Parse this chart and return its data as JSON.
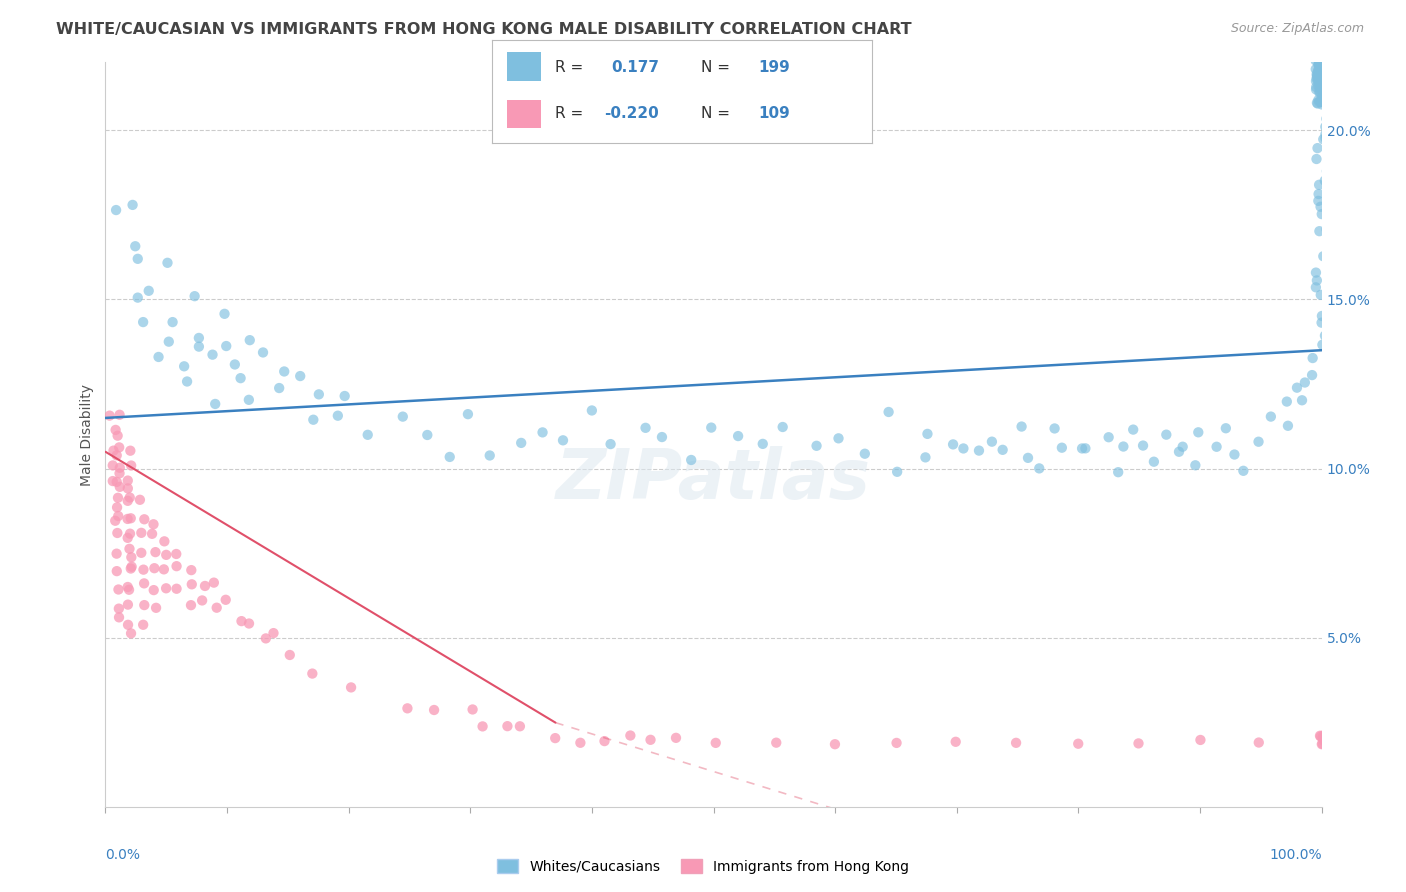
{
  "title": "WHITE/CAUCASIAN VS IMMIGRANTS FROM HONG KONG MALE DISABILITY CORRELATION CHART",
  "source": "Source: ZipAtlas.com",
  "ylabel": "Male Disability",
  "legend_white": {
    "R": 0.177,
    "N": 199,
    "label": "Whites/Caucasians"
  },
  "legend_hk": {
    "R": -0.22,
    "N": 109,
    "label": "Immigrants from Hong Kong"
  },
  "white_color": "#7fbfdf",
  "hk_color": "#f899b5",
  "white_line_color": "#3a80c0",
  "hk_line_color": "#e0506a",
  "title_color": "#444444",
  "axis_label_color": "#3a80c0",
  "xlim": [
    0,
    100
  ],
  "ylim": [
    0,
    22
  ],
  "ytick_vals": [
    5,
    10,
    15,
    20
  ],
  "ytick_labels": [
    "5.0%",
    "10.0%",
    "15.0%",
    "20.0%"
  ],
  "white_scatter_x": [
    1,
    2,
    2,
    3,
    3,
    3,
    4,
    4,
    5,
    5,
    6,
    6,
    7,
    7,
    8,
    8,
    9,
    9,
    10,
    10,
    11,
    11,
    12,
    12,
    13,
    14,
    15,
    16,
    17,
    18,
    19,
    20,
    22,
    24,
    26,
    28,
    30,
    32,
    34,
    36,
    38,
    40,
    42,
    44,
    46,
    48,
    50,
    52,
    54,
    56,
    58,
    60,
    62,
    64,
    65,
    67,
    68,
    70,
    71,
    72,
    73,
    74,
    75,
    76,
    77,
    78,
    79,
    80,
    81,
    82,
    83,
    84,
    85,
    85,
    86,
    87,
    88,
    89,
    90,
    90,
    91,
    92,
    93,
    94,
    95,
    96,
    97,
    97,
    98,
    98,
    99,
    99,
    99,
    100,
    100,
    100,
    100,
    100,
    100,
    100,
    100,
    100,
    100,
    100,
    100,
    100,
    100,
    100,
    100,
    100,
    100,
    100,
    100,
    100,
    100,
    100,
    100,
    100,
    100,
    100,
    100,
    100,
    100,
    100,
    100,
    100,
    100,
    100,
    100,
    100,
    100,
    100,
    100,
    100,
    100,
    100,
    100,
    100,
    100,
    100,
    100,
    100,
    100,
    100,
    100,
    100,
    100,
    100,
    100,
    100,
    100,
    100,
    100,
    100,
    100,
    100,
    100,
    100,
    100,
    100,
    100,
    100,
    100,
    100,
    100,
    100,
    100,
    100,
    100,
    100,
    100,
    100,
    100,
    100,
    100,
    100,
    100,
    100,
    100,
    100,
    100,
    100,
    100,
    100,
    100,
    100,
    100,
    100,
    100,
    100,
    100,
    100,
    100,
    100,
    100,
    100,
    100,
    100,
    100
  ],
  "white_scatter_y": [
    17.5,
    16.5,
    18.0,
    14.5,
    16.0,
    15.0,
    15.5,
    13.5,
    16.0,
    14.0,
    14.5,
    13.0,
    15.0,
    12.5,
    14.0,
    13.5,
    13.5,
    12.0,
    13.5,
    14.5,
    12.5,
    13.0,
    12.0,
    14.0,
    13.5,
    12.5,
    13.0,
    12.5,
    11.5,
    12.0,
    11.5,
    12.0,
    11.0,
    11.5,
    11.0,
    10.5,
    11.5,
    10.5,
    11.0,
    11.0,
    11.0,
    11.5,
    10.5,
    11.0,
    11.0,
    10.5,
    11.0,
    11.0,
    10.5,
    11.0,
    10.5,
    11.0,
    10.5,
    11.5,
    10.0,
    10.5,
    11.0,
    10.5,
    10.5,
    10.5,
    11.0,
    10.5,
    11.0,
    10.5,
    10.0,
    11.0,
    10.5,
    10.5,
    10.5,
    11.0,
    10.0,
    10.5,
    11.0,
    10.5,
    10.0,
    11.0,
    10.5,
    10.5,
    11.0,
    10.0,
    10.5,
    11.0,
    10.5,
    10.0,
    11.0,
    11.5,
    11.5,
    12.0,
    12.0,
    12.5,
    12.5,
    13.0,
    13.5,
    13.5,
    14.0,
    14.5,
    14.5,
    15.0,
    15.5,
    15.5,
    16.0,
    16.5,
    17.0,
    17.5,
    17.0,
    18.0,
    17.5,
    18.5,
    18.0,
    19.0,
    18.5,
    19.5,
    19.0,
    20.0,
    19.5,
    21.0,
    20.0,
    21.5,
    20.5,
    21.0,
    20.0,
    21.5,
    21.0,
    21.5,
    21.0,
    22.0,
    21.5,
    21.0,
    22.0,
    21.5,
    21.0,
    22.0,
    21.5,
    22.0,
    21.0,
    21.5,
    22.0,
    21.0,
    21.5,
    22.0,
    21.0,
    21.5,
    22.0,
    21.0,
    22.0,
    21.5,
    21.0,
    22.0,
    21.5,
    22.0,
    21.0,
    21.5,
    22.0,
    21.0,
    21.5,
    22.0,
    21.0,
    22.0,
    21.5,
    21.0,
    21.5,
    22.0,
    21.0,
    22.0,
    21.5,
    21.0,
    22.0,
    21.5,
    21.0,
    22.0,
    21.5,
    22.0,
    21.0,
    21.5,
    22.0,
    21.0,
    22.0,
    21.5,
    21.0,
    22.0,
    21.5,
    21.0,
    22.0,
    21.5,
    22.0,
    21.0,
    21.5,
    22.0,
    21.0,
    22.0,
    21.5,
    21.0,
    22.0,
    21.5,
    21.0,
    22.0,
    21.5,
    22.0,
    21.0
  ],
  "hk_scatter_x": [
    0.5,
    0.5,
    0.5,
    0.5,
    1,
    1,
    1,
    1,
    1,
    1,
    1,
    1,
    1,
    1,
    1,
    1,
    1,
    1,
    1,
    1,
    1,
    1,
    1,
    2,
    2,
    2,
    2,
    2,
    2,
    2,
    2,
    2,
    2,
    2,
    2,
    2,
    2,
    2,
    2,
    2,
    2,
    2,
    3,
    3,
    3,
    3,
    3,
    3,
    3,
    3,
    4,
    4,
    4,
    4,
    4,
    4,
    5,
    5,
    5,
    5,
    6,
    6,
    6,
    7,
    7,
    7,
    8,
    8,
    9,
    9,
    10,
    11,
    12,
    13,
    14,
    15,
    17,
    20,
    25,
    27,
    30,
    31,
    33,
    34,
    37,
    39,
    41,
    43,
    45,
    47,
    50,
    55,
    60,
    65,
    70,
    75,
    80,
    85,
    90,
    95,
    100,
    100,
    100,
    100,
    100,
    100,
    100,
    100,
    100
  ],
  "hk_scatter_y": [
    10.0,
    9.5,
    11.5,
    10.5,
    11.0,
    10.5,
    9.5,
    10.0,
    9.0,
    8.5,
    11.5,
    11.0,
    10.5,
    10.0,
    9.5,
    9.0,
    8.5,
    8.0,
    7.5,
    7.0,
    6.5,
    6.0,
    5.5,
    10.0,
    9.5,
    9.0,
    8.5,
    8.0,
    7.5,
    7.0,
    6.5,
    6.0,
    5.5,
    5.0,
    10.5,
    9.5,
    9.0,
    8.5,
    8.0,
    7.5,
    7.0,
    6.5,
    9.0,
    8.5,
    8.0,
    7.5,
    7.0,
    6.5,
    6.0,
    5.5,
    8.5,
    8.0,
    7.5,
    7.0,
    6.5,
    6.0,
    8.0,
    7.5,
    7.0,
    6.5,
    7.5,
    7.0,
    6.5,
    7.0,
    6.5,
    6.0,
    6.5,
    6.0,
    6.5,
    6.0,
    6.0,
    5.5,
    5.5,
    5.0,
    5.0,
    4.5,
    4.0,
    3.5,
    3.0,
    3.0,
    3.0,
    2.5,
    2.5,
    2.5,
    2.0,
    2.0,
    2.0,
    2.0,
    2.0,
    2.0,
    2.0,
    2.0,
    2.0,
    2.0,
    2.0,
    2.0,
    2.0,
    2.0,
    2.0,
    2.0,
    2.0,
    2.0,
    2.0,
    2.0,
    2.0,
    2.0,
    2.0,
    2.0,
    2.0
  ],
  "hk_trend_x": [
    0,
    37
  ],
  "hk_trend_y": [
    10.5,
    2.5
  ],
  "white_trend_x": [
    0,
    100
  ],
  "white_trend_y": [
    11.5,
    13.5
  ]
}
